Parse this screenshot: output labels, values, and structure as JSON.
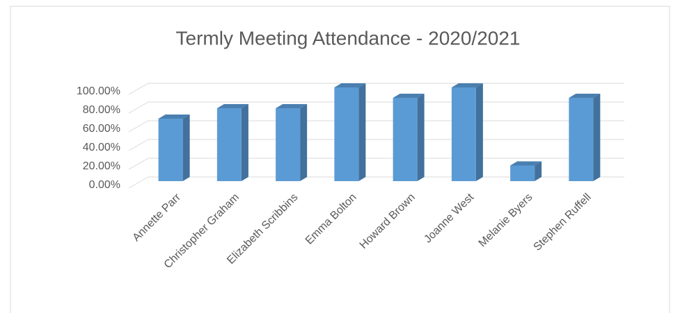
{
  "chart_data": {
    "type": "bar",
    "title": "Termly Meeting Attendance - 2020/2021",
    "categories": [
      "Annette Parr",
      "Christopher Graham",
      "Elizabeth Scribbins",
      "Emma Bolton",
      "Howard Brown",
      "Joanne West",
      "Melanie Byers",
      "Stephen Ruffell"
    ],
    "values": [
      66.67,
      77.78,
      77.78,
      100,
      88.89,
      100,
      16.67,
      88.89
    ],
    "color": "#5b9bd5",
    "ylim": [
      0,
      100
    ],
    "yticks": [
      {
        "value": 0,
        "label": "0.00%"
      },
      {
        "value": 20,
        "label": "20.00%"
      },
      {
        "value": 40,
        "label": "40.00%"
      },
      {
        "value": 60,
        "label": "60.00%"
      },
      {
        "value": 80,
        "label": "80.00%"
      },
      {
        "value": 100,
        "label": "100.00%"
      }
    ],
    "grid": true
  }
}
